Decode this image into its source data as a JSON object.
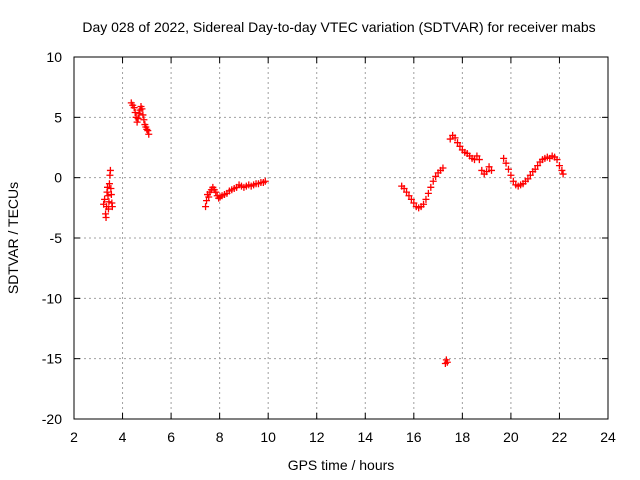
{
  "chart_data": {
    "type": "scatter",
    "title": "Day 028 of 2022, Sidereal Day-to-day VTEC variation (SDTVAR) for receiver mabs",
    "xlabel": "GPS time / hours",
    "ylabel": "SDTVAR / TECUs",
    "xlim": [
      2,
      24
    ],
    "ylim": [
      -20,
      10
    ],
    "xticks": [
      2,
      4,
      6,
      8,
      10,
      12,
      14,
      16,
      18,
      20,
      22,
      24
    ],
    "yticks": [
      -20,
      -15,
      -10,
      -5,
      0,
      5,
      10
    ],
    "grid": true,
    "marker": "+",
    "colors": {
      "series": "#ff0000",
      "grid": "#a0a0a0",
      "axis": "#000000"
    },
    "segments": [
      {
        "name": "seg1",
        "x": [
          3.22,
          3.26,
          3.3,
          3.32,
          3.34,
          3.36,
          3.38,
          3.4,
          3.42,
          3.44,
          3.46,
          3.48,
          3.5,
          3.52,
          3.54,
          3.56,
          3.58
        ],
        "y": [
          -2.2,
          -1.8,
          -3.0,
          -3.3,
          -2.4,
          -1.2,
          -0.8,
          -1.5,
          -2.6,
          -2.0,
          -0.5,
          0.2,
          0.6,
          -0.9,
          -1.4,
          -2.1,
          -2.4
        ]
      },
      {
        "name": "seg2",
        "x": [
          4.36,
          4.42,
          4.48,
          4.52,
          4.56,
          4.6,
          4.64,
          4.68,
          4.72,
          4.76,
          4.8,
          4.84,
          4.88,
          4.92,
          4.96,
          5.0,
          5.04,
          5.08
        ],
        "y": [
          6.2,
          6.0,
          5.8,
          5.4,
          5.0,
          4.6,
          4.9,
          5.3,
          5.6,
          5.9,
          5.7,
          5.2,
          4.8,
          4.4,
          4.2,
          4.0,
          3.9,
          3.6
        ]
      },
      {
        "name": "seg3",
        "x": [
          7.42,
          7.46,
          7.5,
          7.55,
          7.6,
          7.66,
          7.72,
          7.78,
          7.84,
          7.9,
          7.96,
          8.02,
          8.1,
          8.2,
          8.3,
          8.4,
          8.5,
          8.6,
          8.7,
          8.8,
          8.9,
          9.0,
          9.1,
          9.2,
          9.3,
          9.4,
          9.5,
          9.6,
          9.7,
          9.8,
          9.88
        ],
        "y": [
          -2.4,
          -1.9,
          -1.4,
          -1.6,
          -1.2,
          -1.0,
          -0.8,
          -1.0,
          -1.2,
          -1.5,
          -1.7,
          -1.6,
          -1.5,
          -1.4,
          -1.3,
          -1.1,
          -1.0,
          -0.9,
          -0.8,
          -0.6,
          -0.7,
          -0.8,
          -0.7,
          -0.6,
          -0.7,
          -0.6,
          -0.5,
          -0.5,
          -0.4,
          -0.4,
          -0.3
        ]
      },
      {
        "name": "seg4",
        "x": [
          15.5,
          15.6,
          15.7,
          15.8,
          15.9,
          16.0,
          16.1,
          16.2,
          16.3,
          16.4,
          16.5,
          16.6,
          16.7,
          16.8,
          16.9,
          17.0,
          17.1,
          17.2
        ],
        "y": [
          -0.7,
          -0.9,
          -1.2,
          -1.5,
          -1.8,
          -2.1,
          -2.4,
          -2.5,
          -2.4,
          -2.2,
          -1.8,
          -1.3,
          -0.8,
          -0.3,
          0.1,
          0.4,
          0.6,
          0.8
        ]
      },
      {
        "name": "seg5",
        "x": [
          17.3,
          17.34,
          17.38
        ],
        "y": [
          -15.4,
          -15.1,
          -15.3
        ]
      },
      {
        "name": "seg6",
        "x": [
          17.5,
          17.6,
          17.7,
          17.8,
          17.9,
          18.0,
          18.1,
          18.2,
          18.3,
          18.4,
          18.5,
          18.6,
          18.7,
          18.8,
          18.9,
          19.0,
          19.1,
          19.2
        ],
        "y": [
          3.2,
          3.5,
          3.3,
          2.9,
          2.6,
          2.3,
          2.1,
          2.0,
          1.8,
          1.6,
          1.5,
          1.8,
          1.5,
          0.6,
          0.3,
          0.5,
          0.9,
          0.6
        ]
      },
      {
        "name": "seg7",
        "x": [
          19.7,
          19.8,
          19.9,
          20.0,
          20.1,
          20.2,
          20.3,
          20.4,
          20.5,
          20.6,
          20.7,
          20.8,
          20.9,
          21.0,
          21.1,
          21.2,
          21.3,
          21.4,
          21.5,
          21.6,
          21.7,
          21.8,
          21.9,
          22.0,
          22.1,
          22.15
        ],
        "y": [
          1.6,
          1.2,
          0.7,
          0.2,
          -0.3,
          -0.6,
          -0.7,
          -0.6,
          -0.5,
          -0.3,
          -0.1,
          0.2,
          0.5,
          0.7,
          1.0,
          1.3,
          1.5,
          1.6,
          1.7,
          1.6,
          1.8,
          1.7,
          1.5,
          1.0,
          0.6,
          0.3
        ]
      }
    ]
  }
}
